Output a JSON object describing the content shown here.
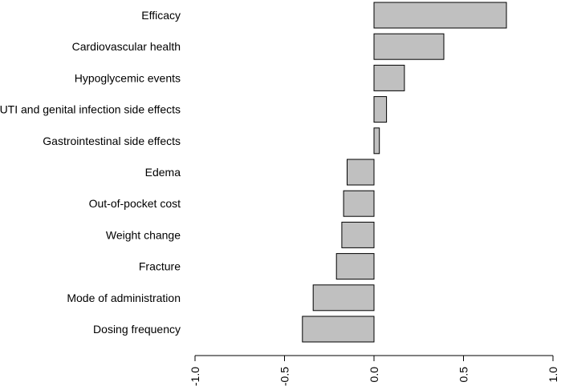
{
  "chart_data": {
    "type": "bar",
    "orientation": "horizontal",
    "title": "",
    "xlabel": "",
    "ylabel": "",
    "categories": [
      "Efficacy",
      "Cardiovascular health",
      "Hypoglycemic events",
      "UTI and genital infection side effects",
      "Gastrointestinal side effects",
      "Edema",
      "Out-of-pocket cost",
      "Weight change",
      "Fracture",
      "Mode of administration",
      "Dosing frequency"
    ],
    "values": [
      0.74,
      0.39,
      0.17,
      0.07,
      0.03,
      -0.15,
      -0.17,
      -0.18,
      -0.21,
      -0.34,
      -0.4
    ],
    "xlim": [
      -1.0,
      1.0
    ],
    "xticks": [
      -1.0,
      -0.5,
      0.0,
      0.5,
      1.0
    ],
    "xtick_labels": [
      "-1.0",
      "-0.5",
      "0.0",
      "0.5",
      "1.0"
    ],
    "bar_color": "#c0c0c0",
    "edge_color": "#000000"
  }
}
